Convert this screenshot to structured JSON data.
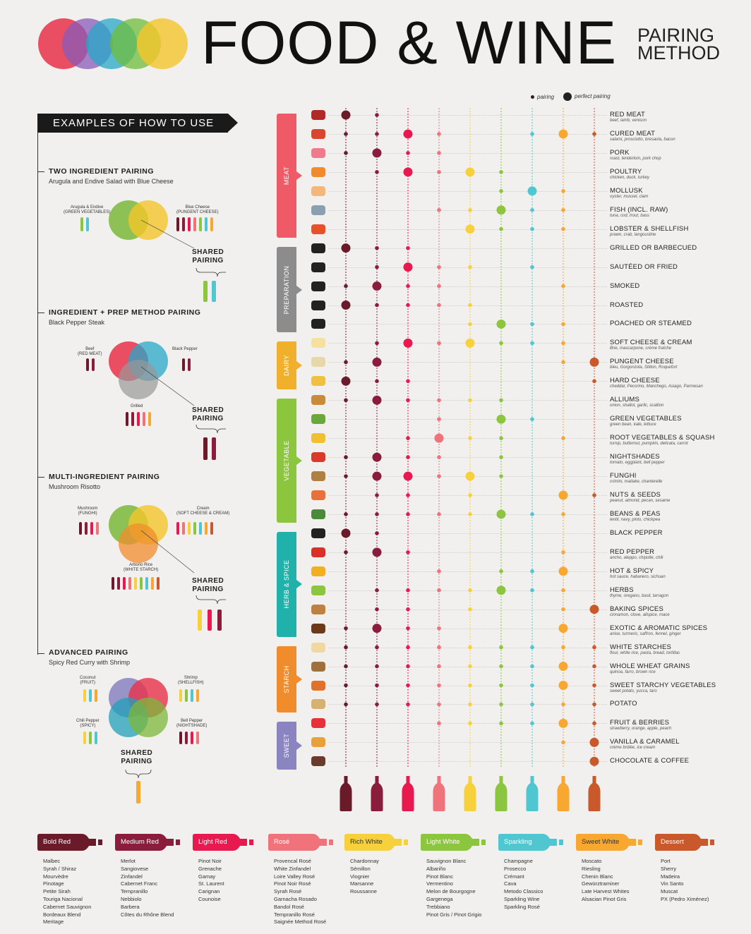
{
  "title": {
    "main": "FOOD & WINE",
    "sub_line1": "PAIRING",
    "sub_line2": "METHOD"
  },
  "legend": {
    "pairing": "pairing",
    "perfect": "perfect pairing"
  },
  "examples": {
    "banner": "EXAMPLES OF HOW TO USE",
    "shared_line1": "SHARED",
    "shared_line2": "PAIRING",
    "items": [
      {
        "title": "TWO INGREDIENT PAIRING",
        "subtitle": "Arugula and Endive Salad with Blue Cheese",
        "labels": [
          {
            "name": "Arugula & Endive",
            "tag": "(GREEN VEGETABLES)"
          },
          {
            "name": "Blue Cheese",
            "tag": "(PUNGENT CHEESE)"
          }
        ]
      },
      {
        "title": "INGREDIENT + PREP METHOD PAIRING",
        "subtitle": "Black Pepper Steak",
        "labels": [
          {
            "name": "Beef",
            "tag": "(RED MEAT)"
          },
          {
            "name": "Black Pepper",
            "tag": ""
          },
          {
            "name": "Grilled",
            "tag": ""
          }
        ]
      },
      {
        "title": "MULTI-INGREDIENT PAIRING",
        "subtitle": "Mushroom Risotto",
        "labels": [
          {
            "name": "Mushroom",
            "tag": "(FUNGHI)"
          },
          {
            "name": "Cream",
            "tag": "(SOFT CHEESE & CREAM)"
          },
          {
            "name": "Arborio Rice",
            "tag": "(WHITE STARCH)"
          }
        ]
      },
      {
        "title": "ADVANCED PAIRING",
        "subtitle": "Spicy Red Curry with Shrimp",
        "labels": [
          {
            "name": "Coconut",
            "tag": "(FRUIT)"
          },
          {
            "name": "Shrimp",
            "tag": "(SHELLFISH)"
          },
          {
            "name": "Chili Pepper",
            "tag": "(SPICY)"
          },
          {
            "name": "Bell Pepper",
            "tag": "(NIGHTSHADE)"
          }
        ]
      }
    ]
  },
  "categories": [
    {
      "name": "MEAT",
      "color": "#ee5a66"
    },
    {
      "name": "PREPARATION",
      "color": "#8c8c8c"
    },
    {
      "name": "DAIRY",
      "color": "#f0b02c"
    },
    {
      "name": "VEGETABLE",
      "color": "#8cc63e"
    },
    {
      "name": "HERB & SPICE",
      "color": "#20b2aa"
    },
    {
      "name": "STARCH",
      "color": "#f08c2c"
    },
    {
      "name": "SWEET",
      "color": "#8a84c0"
    }
  ],
  "wines": [
    {
      "name": "Bold Red",
      "color": "#6b1a2a",
      "varieties": [
        "Malbec",
        "Syrah / Shiraz",
        "Mourvèdre",
        "Pinotage",
        "Petite Sirah",
        "Touriga Nacional",
        "Cabernet Sauvignon",
        "Bordeaux Blend",
        "Meritage"
      ]
    },
    {
      "name": "Medium Red",
      "color": "#8a1d3c",
      "varieties": [
        "Merlot",
        "Sangiovese",
        "Zinfandel",
        "Cabernet Franc",
        "Tempranillo",
        "Nebbiolo",
        "Barbera",
        "Côtes du Rhône Blend"
      ]
    },
    {
      "name": "Light Red",
      "color": "#e8194f",
      "varieties": [
        "Pinot Noir",
        "Grenache",
        "Gamay",
        "St. Laurent",
        "Carignan",
        "Counoise"
      ]
    },
    {
      "name": "Rosé",
      "color": "#f0727a",
      "varieties": [
        "Provencal Rosé",
        "White Zinfandel",
        "Loire Valley Rosé",
        "Pinot Noir Rosé",
        "Syrah Rosé",
        "Garnacha Rosado",
        "Bandol Rosé",
        "Tempranillo Rosé",
        "Saignée Method Rosé"
      ]
    },
    {
      "name": "Rich White",
      "color": "#f7d13b",
      "varieties": [
        "Chardonnay",
        "Sémillon",
        "Viognier",
        "Marsanne",
        "Roussanne"
      ]
    },
    {
      "name": "Light White",
      "color": "#8cc63e",
      "varieties": [
        "Sauvignon Blanc",
        "Albariño",
        "Pinot Blanc",
        "Vermentino",
        "Melon de Bourgogne",
        "Gargenega",
        "Trebbiano",
        "Pinot Gris / Pinot Grigio"
      ]
    },
    {
      "name": "Sparkling",
      "color": "#4fc6d0",
      "varieties": [
        "Champagne",
        "Prosecco",
        "Crémant",
        "Cava",
        "Metodo Classico",
        "Sparkling Wine",
        "Sparkling Rosé"
      ]
    },
    {
      "name": "Sweet White",
      "color": "#f8a830",
      "varieties": [
        "Moscato",
        "Riesling",
        "Chenin Blanc",
        "Gewürztraminer",
        "Late Harvest Whites",
        "Alsacian Pinot Gris"
      ]
    },
    {
      "name": "Dessert",
      "color": "#c9582a",
      "varieties": [
        "Port",
        "Sherry",
        "Madeira",
        "Vin Santo",
        "Muscat",
        "PX (Pedro Ximénez)"
      ]
    }
  ],
  "rows": [
    {
      "cat": 0,
      "label": "RED MEAT",
      "sub": "beef, lamb, venison",
      "icon_color": "#b02a2a",
      "p": [
        2,
        1,
        0,
        0,
        0,
        0,
        0,
        0,
        0
      ]
    },
    {
      "cat": 0,
      "label": "CURED MEAT",
      "sub": "salami, prosciutto, bresaola, bacon",
      "icon_color": "#d9452f",
      "p": [
        1,
        1,
        2,
        1,
        0,
        0,
        1,
        2,
        1
      ]
    },
    {
      "cat": 0,
      "label": "PORK",
      "sub": "roast, tenderloin, pork chop",
      "icon_color": "#ef7a8c",
      "p": [
        1,
        2,
        1,
        1,
        0,
        0,
        0,
        0,
        0
      ]
    },
    {
      "cat": 0,
      "label": "POULTRY",
      "sub": "chicken, duck, turkey",
      "icon_color": "#f08a2c",
      "p": [
        0,
        1,
        2,
        1,
        2,
        1,
        0,
        0,
        0
      ]
    },
    {
      "cat": 0,
      "label": "MOLLUSK",
      "sub": "oyster, mussel, clam",
      "icon_color": "#f5b67a",
      "p": [
        0,
        0,
        0,
        0,
        0,
        1,
        2,
        1,
        0
      ]
    },
    {
      "cat": 0,
      "label": "FISH (INCL. RAW)",
      "sub": "tuna, cod, trout, bass",
      "icon_color": "#8aa0b0",
      "p": [
        0,
        0,
        0,
        1,
        1,
        2,
        1,
        1,
        0
      ]
    },
    {
      "cat": 0,
      "label": "LOBSTER & SHELLFISH",
      "sub": "prawn, crab, langoustine",
      "icon_color": "#e8502a",
      "p": [
        0,
        0,
        0,
        0,
        2,
        1,
        1,
        1,
        0
      ]
    },
    {
      "cat": 1,
      "label": "GRILLED OR BARBECUED",
      "sub": "",
      "icon_color": "#222222",
      "p": [
        2,
        1,
        1,
        0,
        0,
        0,
        0,
        0,
        0
      ]
    },
    {
      "cat": 1,
      "label": "SAUTÉED OR FRIED",
      "sub": "",
      "icon_color": "#222222",
      "p": [
        0,
        1,
        2,
        1,
        1,
        0,
        1,
        0,
        0
      ]
    },
    {
      "cat": 1,
      "label": "SMOKED",
      "sub": "",
      "icon_color": "#222222",
      "p": [
        1,
        2,
        1,
        1,
        0,
        0,
        0,
        1,
        0
      ]
    },
    {
      "cat": 1,
      "label": "ROASTED",
      "sub": "",
      "icon_color": "#222222",
      "p": [
        2,
        1,
        1,
        1,
        1,
        0,
        0,
        0,
        0
      ]
    },
    {
      "cat": 1,
      "label": "POACHED OR STEAMED",
      "sub": "",
      "icon_color": "#222222",
      "p": [
        0,
        0,
        0,
        0,
        1,
        2,
        1,
        1,
        0
      ]
    },
    {
      "cat": 2,
      "label": "SOFT CHEESE & CREAM",
      "sub": "Brie, mascarpone, crème fraîche",
      "icon_color": "#f5e0a0",
      "p": [
        0,
        1,
        2,
        1,
        2,
        1,
        1,
        1,
        0
      ]
    },
    {
      "cat": 2,
      "label": "PUNGENT CHEESE",
      "sub": "bleu, Gorgonzola, Stilton, Roquefort",
      "icon_color": "#e6d8a8",
      "p": [
        1,
        2,
        0,
        0,
        0,
        0,
        0,
        1,
        2
      ]
    },
    {
      "cat": 2,
      "label": "HARD CHEESE",
      "sub": "cheddar, Pecorino, Manchego, Asiago, Parmesan",
      "icon_color": "#f0c040",
      "p": [
        2,
        1,
        1,
        0,
        0,
        0,
        0,
        0,
        1
      ]
    },
    {
      "cat": 3,
      "label": "ALLIUMS",
      "sub": "onion, shallot, garlic, scallion",
      "icon_color": "#c98a3a",
      "p": [
        1,
        2,
        1,
        1,
        1,
        1,
        0,
        0,
        0
      ]
    },
    {
      "cat": 3,
      "label": "GREEN VEGETABLES",
      "sub": "green bean, kale, lettuce",
      "icon_color": "#6aa83a",
      "p": [
        0,
        0,
        0,
        1,
        0,
        2,
        1,
        0,
        0
      ]
    },
    {
      "cat": 3,
      "label": "ROOT VEGETABLES & SQUASH",
      "sub": "turnip, butternut, pumpkin, delicata, carrot",
      "icon_color": "#f0c030",
      "p": [
        0,
        0,
        1,
        2,
        1,
        1,
        0,
        1,
        0
      ]
    },
    {
      "cat": 3,
      "label": "NIGHTSHADES",
      "sub": "tomato, eggplant, bell pepper",
      "icon_color": "#d93a2a",
      "p": [
        1,
        2,
        1,
        1,
        0,
        1,
        0,
        0,
        0
      ]
    },
    {
      "cat": 3,
      "label": "FUNGHI",
      "sub": "crimini, maitake, chanterelle",
      "icon_color": "#b08040",
      "p": [
        1,
        2,
        2,
        1,
        2,
        1,
        0,
        0,
        0
      ]
    },
    {
      "cat": 3,
      "label": "NUTS & SEEDS",
      "sub": "peanut, almond, pecan, sesame",
      "icon_color": "#e8703a",
      "p": [
        0,
        1,
        1,
        0,
        1,
        0,
        0,
        2,
        1
      ]
    },
    {
      "cat": 3,
      "label": "BEANS & PEAS",
      "sub": "lentil, navy, pinto, chickpea",
      "icon_color": "#4a8a3a",
      "p": [
        1,
        1,
        1,
        1,
        1,
        2,
        1,
        1,
        0
      ]
    },
    {
      "cat": 4,
      "label": "BLACK PEPPER",
      "sub": "",
      "icon_color": "#222222",
      "p": [
        2,
        1,
        0,
        0,
        0,
        0,
        0,
        0,
        0
      ]
    },
    {
      "cat": 4,
      "label": "RED PEPPER",
      "sub": "ancho, aleppo, chipotle, chili",
      "icon_color": "#d9302a",
      "p": [
        1,
        2,
        1,
        0,
        0,
        0,
        0,
        1,
        0
      ]
    },
    {
      "cat": 4,
      "label": "HOT & SPICY",
      "sub": "hot sauce, habanero, sichuan",
      "icon_color": "#f0b020",
      "p": [
        0,
        0,
        0,
        1,
        0,
        1,
        1,
        2,
        0
      ]
    },
    {
      "cat": 4,
      "label": "HERBS",
      "sub": "thyme, oregano, basil, tarragon",
      "icon_color": "#8cc63e",
      "p": [
        0,
        1,
        1,
        1,
        1,
        2,
        1,
        1,
        0
      ]
    },
    {
      "cat": 4,
      "label": "BAKING SPICES",
      "sub": "cinnamon, clove, allspice, mace",
      "icon_color": "#c08040",
      "p": [
        0,
        1,
        1,
        0,
        1,
        0,
        0,
        1,
        2
      ]
    },
    {
      "cat": 4,
      "label": "EXOTIC & AROMATIC SPICES",
      "sub": "anise, turmeric, saffron, fennel, ginger",
      "icon_color": "#6a3a1a",
      "p": [
        1,
        2,
        1,
        1,
        0,
        0,
        0,
        2,
        0
      ]
    },
    {
      "cat": 5,
      "label": "WHITE STARCHES",
      "sub": "flour, white rice, pasta, bread, tortillas",
      "icon_color": "#f0d8a0",
      "p": [
        1,
        1,
        1,
        1,
        1,
        1,
        1,
        1,
        1
      ]
    },
    {
      "cat": 5,
      "label": "WHOLE WHEAT GRAINS",
      "sub": "quinoa, farro, brown rice",
      "icon_color": "#a0703a",
      "p": [
        1,
        1,
        1,
        1,
        1,
        1,
        1,
        2,
        1
      ]
    },
    {
      "cat": 5,
      "label": "SWEET STARCHY VEGETABLES",
      "sub": "sweet potato, yucca, taro",
      "icon_color": "#e0702a",
      "p": [
        1,
        1,
        1,
        1,
        1,
        1,
        1,
        2,
        1
      ]
    },
    {
      "cat": 5,
      "label": "POTATO",
      "sub": "",
      "icon_color": "#d8b070",
      "p": [
        1,
        1,
        1,
        1,
        1,
        1,
        1,
        1,
        1
      ]
    },
    {
      "cat": 6,
      "label": "FRUIT & BERRIES",
      "sub": "strawberry, orange, apple, peach",
      "icon_color": "#e8303a",
      "p": [
        0,
        0,
        0,
        1,
        1,
        1,
        1,
        2,
        1
      ]
    },
    {
      "cat": 6,
      "label": "VANILLA & CARAMEL",
      "sub": "crème brûlée, ice cream",
      "icon_color": "#e8a03a",
      "p": [
        0,
        0,
        0,
        0,
        0,
        0,
        0,
        1,
        2
      ]
    },
    {
      "cat": 6,
      "label": "CHOCOLATE & COFFEE",
      "sub": "",
      "icon_color": "#6a3a2a",
      "p": [
        0,
        0,
        0,
        0,
        0,
        0,
        0,
        0,
        2
      ]
    }
  ]
}
